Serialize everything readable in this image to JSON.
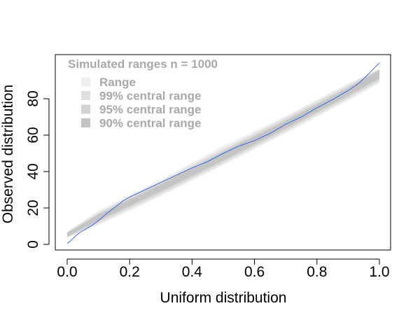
{
  "chart_data": {
    "type": "area",
    "xlabel": "Uniform distribution",
    "ylabel": "Observed distribution",
    "xlim": [
      0.0,
      1.0
    ],
    "ylim": [
      0,
      100
    ],
    "x_ticks": [
      "0.0",
      "0.2",
      "0.4",
      "0.6",
      "0.8",
      "1.0"
    ],
    "y_ticks": [
      "0",
      "20",
      "40",
      "60",
      "80"
    ],
    "legend": {
      "position": "top-left",
      "title": "Simulated ranges n = 1000",
      "entries": [
        {
          "label": "Range",
          "color": "#efefef"
        },
        {
          "label": "99% central range",
          "color": "#e0e0e0"
        },
        {
          "label": "95% central range",
          "color": "#d3d3d3"
        },
        {
          "label": "90% central range",
          "color": "#c4c4c4"
        }
      ]
    },
    "bands": [
      {
        "name": "Range",
        "color": "#efefef",
        "x": [
          0.0,
          0.1,
          0.3,
          0.5,
          0.7,
          0.9,
          1.0
        ],
        "lower": [
          3.5,
          10.5,
          26.5,
          43.5,
          61,
          79,
          88.5
        ],
        "upper": [
          7,
          18.5,
          35.5,
          54,
          70.5,
          88.5,
          96.5
        ]
      },
      {
        "name": "99% central range",
        "color": "#e0e0e0",
        "x": [
          0.0,
          0.1,
          0.3,
          0.5,
          0.7,
          0.9,
          1.0
        ],
        "lower": [
          3.8,
          11.5,
          27.5,
          44.5,
          62,
          80,
          89.5
        ],
        "upper": [
          6.8,
          17.5,
          34.5,
          52.5,
          69.5,
          87.5,
          96.2
        ]
      },
      {
        "name": "95% central range",
        "color": "#d3d3d3",
        "x": [
          0.0,
          0.1,
          0.3,
          0.5,
          0.7,
          0.9,
          1.0
        ],
        "lower": [
          4.1,
          12.5,
          28.5,
          45.5,
          63,
          81,
          90.5
        ],
        "upper": [
          6.5,
          16.8,
          33.5,
          51.5,
          68.5,
          86.5,
          95.9
        ]
      },
      {
        "name": "90% central range",
        "color": "#c4c4c4",
        "x": [
          0.0,
          0.1,
          0.3,
          0.5,
          0.7,
          0.9,
          1.0
        ],
        "lower": [
          4.4,
          13.2,
          29.3,
          46.3,
          63.8,
          81.8,
          91.3
        ],
        "upper": [
          6.2,
          16.2,
          32.8,
          50.7,
          67.8,
          85.8,
          95.6
        ]
      }
    ],
    "series": [
      {
        "color": "#4169e1",
        "x": [
          0.0,
          0.01,
          0.02,
          0.03,
          0.04,
          0.05,
          0.06,
          0.08,
          0.1,
          0.12,
          0.15,
          0.18,
          0.2,
          0.25,
          0.3,
          0.35,
          0.4,
          0.45,
          0.5,
          0.55,
          0.6,
          0.65,
          0.7,
          0.75,
          0.8,
          0.85,
          0.9,
          0.93,
          0.95,
          0.97,
          0.99,
          1.0
        ],
        "y": [
          0.5,
          1.8,
          3.5,
          5,
          6.5,
          7.5,
          8.5,
          10.5,
          13,
          16,
          20,
          24,
          26,
          30,
          34,
          38,
          42,
          45.5,
          50,
          54,
          57,
          61,
          66,
          70,
          75,
          79.5,
          84.5,
          88,
          91,
          94.5,
          98,
          99.5
        ]
      }
    ]
  }
}
